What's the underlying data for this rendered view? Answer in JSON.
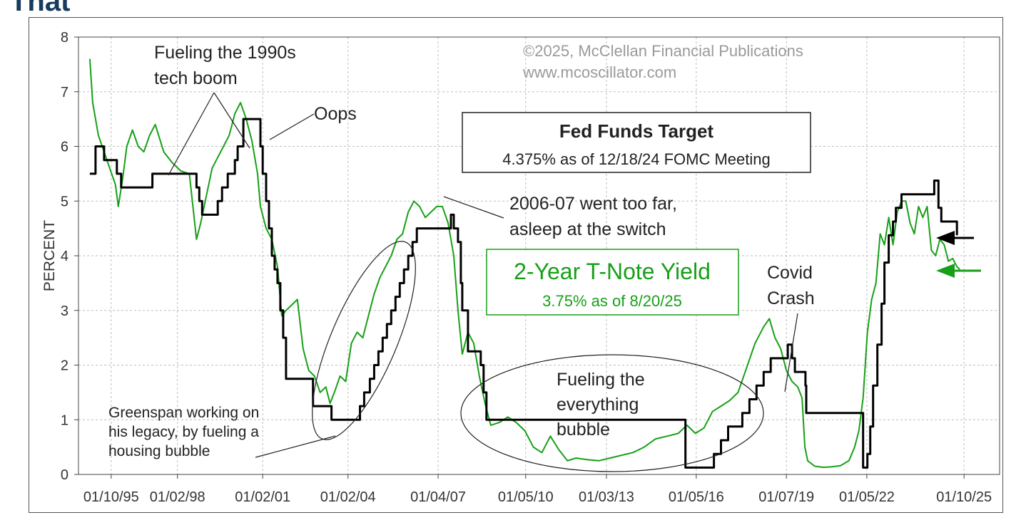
{
  "page": {
    "heading": "That"
  },
  "chart_data": {
    "type": "line",
    "title": "",
    "xlabel": "",
    "ylabel": "PERCENT",
    "ylim": [
      0,
      8
    ],
    "yticks": [
      0,
      1,
      2,
      3,
      4,
      5,
      6,
      7,
      8
    ],
    "xlim": [
      1994.6,
      2027.0
    ],
    "xticks": [
      {
        "label": "01/10/95",
        "t": 1995.75
      },
      {
        "label": "01/02/98",
        "t": 1998.08
      },
      {
        "label": "01/02/01",
        "t": 2001.08
      },
      {
        "label": "01/02/04",
        "t": 2004.08
      },
      {
        "label": "01/04/07",
        "t": 2007.25
      },
      {
        "label": "01/05/10",
        "t": 2010.33
      },
      {
        "label": "01/03/13",
        "t": 2013.17
      },
      {
        "label": "01/05/16",
        "t": 2016.33
      },
      {
        "label": "01/07/19",
        "t": 2019.5
      },
      {
        "label": "01/05/22",
        "t": 2022.33
      },
      {
        "label": "01/10/25",
        "t": 2025.75
      }
    ],
    "grid": true,
    "colors": {
      "fed": "#000000",
      "yield": "#17a017",
      "annotation": "#222222",
      "copyright": "#9a9a9a"
    },
    "series": [
      {
        "name": "Fed Funds Target",
        "step": true,
        "x": [
          1995.0,
          1995.2,
          1995.5,
          1995.95,
          1996.1,
          1997.2,
          1998.75,
          1998.85,
          1998.95,
          1999.5,
          1999.65,
          1999.85,
          2000.1,
          2000.2,
          2000.4,
          2001.0,
          2001.08,
          2001.2,
          2001.3,
          2001.4,
          2001.5,
          2001.6,
          2001.7,
          2001.8,
          2001.9,
          2002.85,
          2003.5,
          2004.5,
          2004.65,
          2004.85,
          2005.0,
          2005.15,
          2005.3,
          2005.45,
          2005.6,
          2005.75,
          2005.9,
          2006.05,
          2006.2,
          2006.35,
          2006.5,
          2007.7,
          2007.8,
          2007.95,
          2008.05,
          2008.1,
          2008.3,
          2008.75,
          2008.85,
          2008.95,
          2015.95,
          2016.95,
          2017.2,
          2017.45,
          2017.95,
          2018.2,
          2018.45,
          2018.7,
          2018.95,
          2019.55,
          2019.7,
          2019.8,
          2020.17,
          2020.2,
          2022.2,
          2022.35,
          2022.45,
          2022.55,
          2022.7,
          2022.85,
          2022.95,
          2023.1,
          2023.25,
          2023.35,
          2023.55,
          2024.7,
          2024.85,
          2024.95,
          2025.5
        ],
        "values": [
          5.5,
          6.0,
          5.75,
          5.5,
          5.25,
          5.5,
          5.25,
          5.0,
          4.75,
          5.0,
          5.25,
          5.5,
          5.75,
          6.0,
          6.5,
          6.0,
          5.5,
          5.0,
          4.5,
          4.0,
          3.75,
          3.5,
          3.0,
          2.5,
          1.75,
          1.25,
          1.0,
          1.25,
          1.5,
          1.75,
          2.0,
          2.25,
          2.5,
          2.75,
          3.0,
          3.25,
          3.5,
          3.75,
          4.0,
          4.25,
          4.5,
          4.75,
          4.5,
          4.25,
          3.5,
          3.0,
          2.25,
          2.0,
          1.5,
          1.0,
          0.125,
          0.375,
          0.625,
          0.875,
          1.125,
          1.375,
          1.625,
          1.875,
          2.125,
          2.375,
          2.125,
          1.875,
          1.625,
          1.125,
          0.125,
          0.375,
          0.875,
          1.625,
          2.375,
          3.125,
          3.875,
          4.375,
          4.625,
          4.875,
          5.125,
          5.375,
          4.875,
          4.625,
          4.375
        ]
      },
      {
        "name": "2-Year T-Note Yield",
        "step": false,
        "x": [
          1995.0,
          1995.1,
          1995.3,
          1995.5,
          1995.7,
          1995.9,
          1996.0,
          1996.15,
          1996.3,
          1996.5,
          1996.7,
          1996.9,
          1997.1,
          1997.3,
          1997.6,
          1997.9,
          1998.2,
          1998.5,
          1998.75,
          1998.9,
          1999.1,
          1999.3,
          1999.5,
          1999.7,
          1999.9,
          2000.1,
          2000.3,
          2000.5,
          2000.7,
          2000.9,
          2001.0,
          2001.2,
          2001.4,
          2001.6,
          2001.75,
          2001.9,
          2002.1,
          2002.3,
          2002.5,
          2002.7,
          2002.9,
          2003.1,
          2003.3,
          2003.45,
          2003.6,
          2003.8,
          2004.0,
          2004.2,
          2004.4,
          2004.6,
          2004.8,
          2005.0,
          2005.2,
          2005.4,
          2005.6,
          2005.8,
          2006.0,
          2006.2,
          2006.4,
          2006.6,
          2006.8,
          2007.0,
          2007.2,
          2007.4,
          2007.6,
          2007.8,
          2007.95,
          2008.1,
          2008.3,
          2008.5,
          2008.7,
          2008.9,
          2009.1,
          2009.4,
          2009.7,
          2010.0,
          2010.3,
          2010.6,
          2010.9,
          2011.2,
          2011.5,
          2011.8,
          2012.1,
          2012.5,
          2012.9,
          2013.3,
          2013.7,
          2014.1,
          2014.5,
          2014.9,
          2015.3,
          2015.7,
          2016.0,
          2016.3,
          2016.6,
          2016.9,
          2017.2,
          2017.5,
          2017.8,
          2018.1,
          2018.4,
          2018.7,
          2018.9,
          2019.1,
          2019.3,
          2019.5,
          2019.7,
          2019.9,
          2020.05,
          2020.15,
          2020.25,
          2020.5,
          2020.8,
          2021.1,
          2021.4,
          2021.7,
          2021.9,
          2022.05,
          2022.2,
          2022.35,
          2022.5,
          2022.65,
          2022.8,
          2022.95,
          2023.1,
          2023.25,
          2023.4,
          2023.55,
          2023.7,
          2023.85,
          2024.0,
          2024.15,
          2024.3,
          2024.45,
          2024.6,
          2024.75,
          2024.9,
          2025.05,
          2025.2,
          2025.35,
          2025.5,
          2025.6
        ],
        "values": [
          7.6,
          6.8,
          6.2,
          5.9,
          5.6,
          5.3,
          4.9,
          5.4,
          6.0,
          6.3,
          6.0,
          5.9,
          6.2,
          6.4,
          5.9,
          5.7,
          5.55,
          5.5,
          4.3,
          4.6,
          5.1,
          5.6,
          5.8,
          6.0,
          6.2,
          6.6,
          6.8,
          6.5,
          6.1,
          5.5,
          4.9,
          4.5,
          4.3,
          3.8,
          2.9,
          3.0,
          3.1,
          3.2,
          2.3,
          1.9,
          1.8,
          1.5,
          1.6,
          1.3,
          1.5,
          1.8,
          1.7,
          2.4,
          2.6,
          2.5,
          2.9,
          3.3,
          3.6,
          3.8,
          4.0,
          4.3,
          4.4,
          4.8,
          5.0,
          4.9,
          4.7,
          4.8,
          4.9,
          4.9,
          4.6,
          4.0,
          3.0,
          2.2,
          2.6,
          2.4,
          1.8,
          1.3,
          0.9,
          0.95,
          1.05,
          0.95,
          0.8,
          0.5,
          0.4,
          0.7,
          0.45,
          0.25,
          0.3,
          0.27,
          0.25,
          0.3,
          0.35,
          0.4,
          0.5,
          0.65,
          0.7,
          0.75,
          0.9,
          0.75,
          0.85,
          1.15,
          1.25,
          1.35,
          1.5,
          1.95,
          2.4,
          2.7,
          2.85,
          2.5,
          2.3,
          1.9,
          1.7,
          1.6,
          1.4,
          0.5,
          0.25,
          0.15,
          0.13,
          0.14,
          0.16,
          0.25,
          0.5,
          0.8,
          1.4,
          2.6,
          3.2,
          3.5,
          4.4,
          4.2,
          4.7,
          4.2,
          4.8,
          5.0,
          5.0,
          4.6,
          4.4,
          4.9,
          4.7,
          4.9,
          4.1,
          4.0,
          4.3,
          4.2,
          3.9,
          3.95,
          3.8,
          3.75
        ]
      }
    ],
    "annotations": {
      "copyright_line1": "©2025, McClellan Financial Publications",
      "copyright_line2": "www.mcoscillator.com",
      "fueling_1990s_line1": "Fueling the 1990s",
      "fueling_1990s_line2": "tech boom",
      "oops": "Oops",
      "fed_box_title": "Fed Funds Target",
      "fed_box_sub": "4.375% as of 12/18/24 FOMC Meeting",
      "went_too_far_line1": "2006-07 went too far,",
      "went_too_far_line2": "asleep at the switch",
      "yield_box_title": "2-Year T-Note Yield",
      "yield_box_sub": "3.75% as of 8/20/25",
      "covid_line1": "Covid",
      "covid_line2": "Crash",
      "greenspan_line1": "Greenspan working on",
      "greenspan_line2": "his legacy, by fueling a",
      "greenspan_line3": "housing bubble",
      "everything_line1": "Fueling the",
      "everything_line2": "everything",
      "everything_line3": "bubble"
    }
  }
}
